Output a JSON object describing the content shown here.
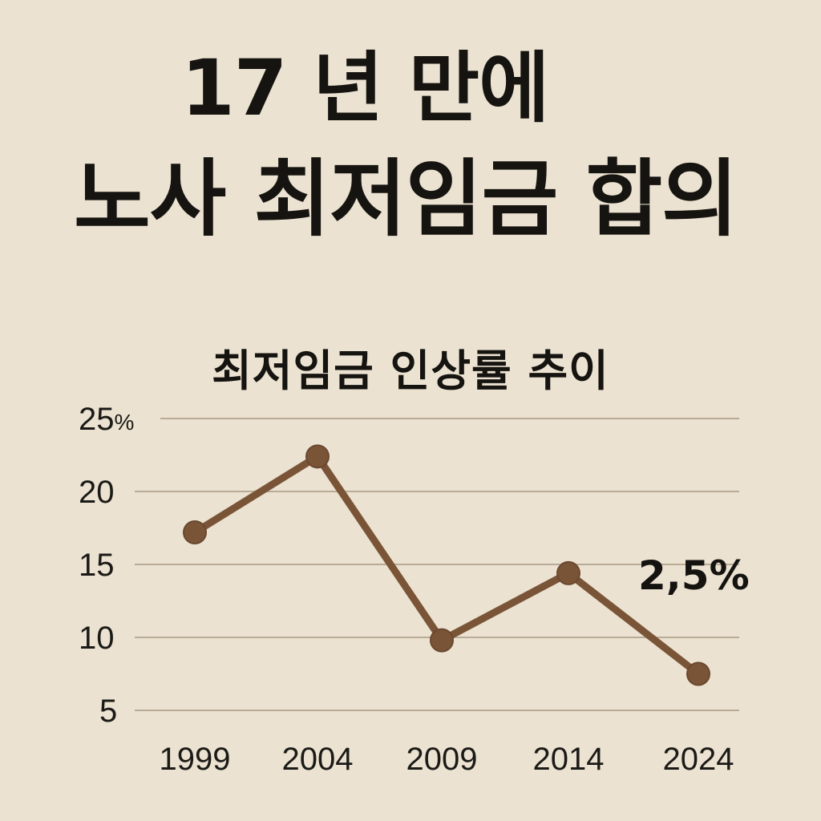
{
  "headline": {
    "line1": "17 년 만에",
    "line2": "노사 최저임금 합의"
  },
  "chart_data": {
    "type": "line",
    "title": "최저임금 인상률 추이",
    "categories": [
      "1999",
      "2004",
      "2009",
      "2014",
      "2024"
    ],
    "series": [
      {
        "values": [
          17.2,
          22.4,
          9.8,
          14.4,
          7.5
        ]
      }
    ],
    "y_ticks": [
      {
        "value": 25,
        "label": "25",
        "unit": "%"
      },
      {
        "value": 20,
        "label": "20",
        "unit": ""
      },
      {
        "value": 15,
        "label": "15",
        "unit": ""
      },
      {
        "value": 10,
        "label": "10",
        "unit": ""
      },
      {
        "value": 5,
        "label": "5",
        "unit": ""
      }
    ],
    "ylim": [
      5,
      25
    ],
    "grid": true,
    "xlabel": "",
    "ylabel": "",
    "annotation": "2,5%",
    "colors": {
      "line": "#7a5436",
      "grid": "#b9ab96",
      "background": "#ebe2d1"
    }
  }
}
